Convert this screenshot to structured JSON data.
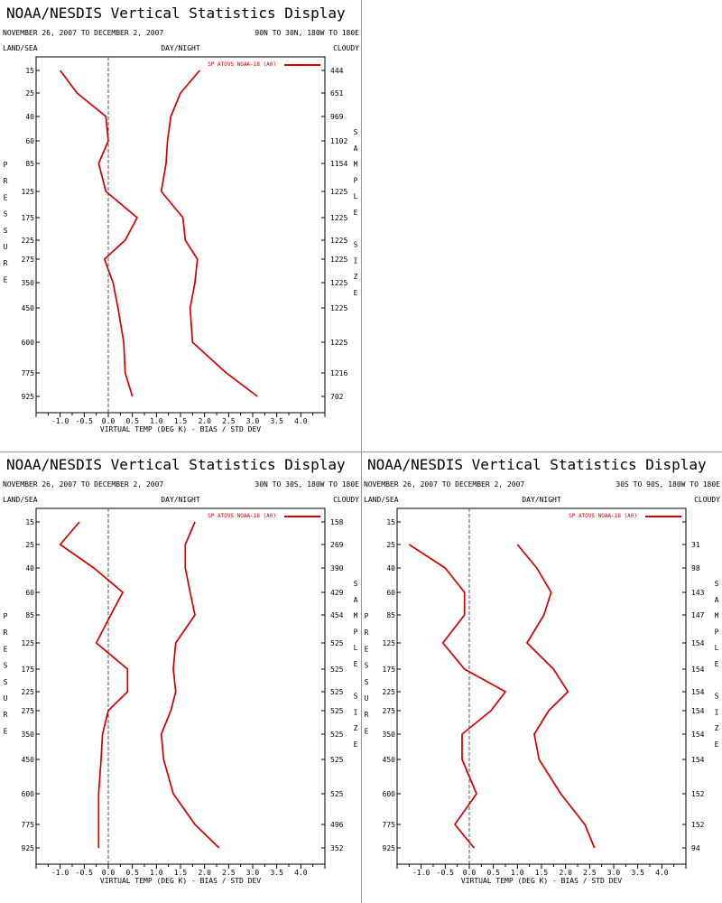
{
  "colors": {
    "series": "#d00000",
    "zero_line": "#555555",
    "frame": "#000000"
  },
  "chart_data": [
    {
      "type": "line",
      "title": "NOAA/NESDIS Vertical Statistics Display",
      "date_range": "NOVEMBER 26, 2007 TO DECEMBER 2, 2007",
      "region": "90N TO 30N, 180W TO 180E",
      "land_sea": "LAND/SEA",
      "day_night": "DAY/NIGHT",
      "cloudy": "CLOUDY",
      "xlabel": "VIRTUAL TEMP (DEG K) - BIAS / STD DEV",
      "ylabel": "PRESSURE",
      "right_label": "SAMPLE SIZE",
      "legend": "SP ATOVS NOAA-18 (A0)",
      "legend_position": "top-right",
      "xlim": [
        -1.5,
        4.5
      ],
      "xticks": [
        "-1.0",
        "-0.5",
        "0.0",
        "0.5",
        "1.0",
        "1.5",
        "2.0",
        "2.5",
        "3.0",
        "3.5",
        "4.0"
      ],
      "pressure_levels": [
        "15",
        "25",
        "40",
        "60",
        "85",
        "125",
        "175",
        "225",
        "275",
        "350",
        "450",
        "600",
        "775",
        "925"
      ],
      "sample_size": [
        "444",
        "651",
        "969",
        "1102",
        "1154",
        "1225",
        "1225",
        "1225",
        "1225",
        "1225",
        "1225",
        "1225",
        "1216",
        "702"
      ],
      "series": [
        {
          "name": "BIAS",
          "values": [
            -1.0,
            -0.65,
            -0.05,
            0.0,
            -0.2,
            -0.05,
            0.6,
            0.35,
            -0.08,
            0.1,
            0.2,
            0.32,
            0.35,
            0.5
          ]
        },
        {
          "name": "STD DEV",
          "values": [
            1.9,
            1.5,
            1.3,
            1.23,
            1.2,
            1.1,
            1.55,
            1.6,
            1.85,
            1.8,
            1.7,
            1.75,
            2.45,
            3.1
          ]
        }
      ]
    },
    {
      "type": "line",
      "title": "NOAA/NESDIS Vertical Statistics Display",
      "date_range": "NOVEMBER 26, 2007 TO DECEMBER 2, 2007",
      "region": "30N TO 30S, 180W TO 180E",
      "land_sea": "LAND/SEA",
      "day_night": "DAY/NIGHT",
      "cloudy": "CLOUDY",
      "xlabel": "VIRTUAL TEMP (DEG K) - BIAS / STD DEV",
      "ylabel": "PRESSURE",
      "right_label": "SAMPLE SIZE",
      "legend": "SP ATOVS NOAA-18 (A0)",
      "legend_position": "top-right",
      "xlim": [
        -1.5,
        4.5
      ],
      "xticks": [
        "-1.0",
        "-0.5",
        "0.0",
        "0.5",
        "1.0",
        "1.5",
        "2.0",
        "2.5",
        "3.0",
        "3.5",
        "4.0"
      ],
      "pressure_levels": [
        "15",
        "25",
        "40",
        "60",
        "85",
        "125",
        "175",
        "225",
        "275",
        "350",
        "450",
        "600",
        "775",
        "925"
      ],
      "sample_size": [
        "158",
        "269",
        "390",
        "429",
        "454",
        "525",
        "525",
        "525",
        "525",
        "525",
        "525",
        "525",
        "496",
        "352"
      ],
      "series": [
        {
          "name": "BIAS",
          "values": [
            -0.6,
            -1.0,
            -0.3,
            0.3,
            0.05,
            -0.25,
            0.4,
            0.4,
            0.0,
            -0.12,
            -0.15,
            -0.2,
            -0.2,
            -0.2
          ]
        },
        {
          "name": "STD DEV",
          "values": [
            1.8,
            1.6,
            1.6,
            1.7,
            1.8,
            1.4,
            1.35,
            1.4,
            1.3,
            1.1,
            1.15,
            1.35,
            1.8,
            2.3
          ]
        }
      ]
    },
    {
      "type": "line",
      "title": "NOAA/NESDIS Vertical Statistics Display",
      "date_range": "NOVEMBER 26, 2007 TO DECEMBER 2, 2007",
      "region": "30S TO 90S, 180W TO 180E",
      "land_sea": "LAND/SEA",
      "day_night": "DAY/NIGHT",
      "cloudy": "CLOUDY",
      "xlabel": "VIRTUAL TEMP (DEG K) - BIAS / STD DEV",
      "ylabel": "PRESSURE",
      "right_label": "SAMPLE SIZE",
      "legend": "SP ATOVS NOAA-18 (A0)",
      "legend_position": "top-right",
      "xlim": [
        -1.5,
        4.5
      ],
      "xticks": [
        "-1.0",
        "-0.5",
        "0.0",
        "0.5",
        "1.0",
        "1.5",
        "2.0",
        "2.5",
        "3.0",
        "3.5",
        "4.0"
      ],
      "pressure_levels": [
        "15",
        "25",
        "40",
        "60",
        "85",
        "125",
        "175",
        "225",
        "275",
        "350",
        "450",
        "600",
        "775",
        "925"
      ],
      "sample_size": [
        "",
        "31",
        "98",
        "143",
        "147",
        "154",
        "154",
        "154",
        "154",
        "154",
        "154",
        "152",
        "152",
        "94"
      ],
      "series": [
        {
          "name": "BIAS",
          "values": [
            null,
            -1.25,
            -0.5,
            -0.1,
            -0.1,
            -0.55,
            -0.1,
            0.75,
            0.45,
            -0.15,
            -0.15,
            0.15,
            -0.3,
            0.1
          ]
        },
        {
          "name": "STD DEV",
          "values": [
            null,
            1.0,
            1.4,
            1.7,
            1.55,
            1.2,
            1.75,
            2.05,
            1.65,
            1.35,
            1.45,
            1.9,
            2.4,
            2.6
          ]
        }
      ]
    }
  ]
}
